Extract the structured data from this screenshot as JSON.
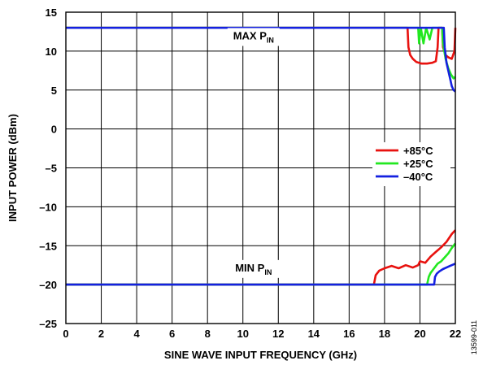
{
  "figure_id": "13599-011",
  "chart_data": {
    "type": "line",
    "title": "",
    "xlabel": "SINE WAVE INPUT FREQUENCY (GHz)",
    "ylabel": "INPUT POWER (dBm)",
    "xlim": [
      0,
      22
    ],
    "ylim": [
      -25,
      15
    ],
    "xticks": [
      0,
      2,
      4,
      6,
      8,
      10,
      12,
      14,
      16,
      18,
      20,
      22
    ],
    "xtick_labels": [
      "0",
      "2",
      "4",
      "6",
      "8",
      "10",
      "12",
      "14",
      "16",
      "18",
      "20",
      "22"
    ],
    "yticks": [
      15,
      10,
      5,
      0,
      -5,
      -10,
      -15,
      -20,
      -25
    ],
    "ytick_labels": [
      "15",
      "10",
      "5",
      "0",
      "–5",
      "–10",
      "–15",
      "–20",
      "–25"
    ],
    "grid": true,
    "legend_position": "right",
    "annotations": [
      {
        "text": "MAX P",
        "subscript": "IN",
        "x": 10.6,
        "y": 11.5
      },
      {
        "text": "MIN P",
        "subscript": "IN",
        "x": 10.6,
        "y": -18.3
      }
    ],
    "series": [
      {
        "name": "+85°C",
        "color": "#e8120f",
        "values": [
          [
            0,
            13
          ],
          [
            19.3,
            13
          ],
          [
            19.35,
            10.5
          ],
          [
            19.45,
            9.5
          ],
          [
            19.6,
            9.0
          ],
          [
            19.8,
            8.6
          ],
          [
            20.1,
            8.4
          ],
          [
            20.4,
            8.4
          ],
          [
            20.7,
            8.5
          ],
          [
            20.9,
            8.7
          ],
          [
            21.0,
            10.5
          ],
          [
            21.05,
            13
          ],
          [
            21.25,
            13
          ],
          [
            21.3,
            10.5
          ],
          [
            21.45,
            9.5
          ],
          [
            21.6,
            9.2
          ],
          [
            21.8,
            9.0
          ],
          [
            21.95,
            10.0
          ],
          [
            22,
            13
          ]
        ]
      },
      {
        "name": "+25°C",
        "color": "#22e820",
        "values": [
          [
            0,
            13
          ],
          [
            19.9,
            13
          ],
          [
            19.95,
            11.0
          ],
          [
            20.05,
            13
          ],
          [
            20.2,
            11.0
          ],
          [
            20.35,
            13
          ],
          [
            20.55,
            11.5
          ],
          [
            20.7,
            13
          ],
          [
            21.25,
            13
          ],
          [
            21.3,
            11.0
          ],
          [
            21.45,
            9.0
          ],
          [
            21.6,
            7.8
          ],
          [
            21.75,
            7.0
          ],
          [
            21.9,
            6.5
          ],
          [
            22,
            6.7
          ]
        ]
      },
      {
        "name": "–40°C",
        "color": "#1420e0",
        "values": [
          [
            0,
            13
          ],
          [
            21.35,
            13
          ],
          [
            21.4,
            10.5
          ],
          [
            21.5,
            8.5
          ],
          [
            21.6,
            7.5
          ],
          [
            21.7,
            6.5
          ],
          [
            21.8,
            5.5
          ],
          [
            21.9,
            5.0
          ],
          [
            22,
            4.8
          ]
        ]
      },
      {
        "name": "+85°C",
        "color": "#e8120f",
        "values": [
          [
            0,
            -20
          ],
          [
            17.4,
            -20
          ],
          [
            17.5,
            -18.8
          ],
          [
            17.7,
            -18.2
          ],
          [
            18.0,
            -17.9
          ],
          [
            18.4,
            -17.6
          ],
          [
            18.8,
            -17.9
          ],
          [
            19.2,
            -17.5
          ],
          [
            19.6,
            -17.8
          ],
          [
            19.9,
            -17.5
          ],
          [
            20.0,
            -17.0
          ],
          [
            20.3,
            -17.2
          ],
          [
            20.6,
            -16.4
          ],
          [
            20.9,
            -15.8
          ],
          [
            21.2,
            -15.2
          ],
          [
            21.5,
            -14.5
          ],
          [
            21.8,
            -13.5
          ],
          [
            22,
            -13.0
          ]
        ]
      },
      {
        "name": "+25°C",
        "color": "#22e820",
        "values": [
          [
            0,
            -20
          ],
          [
            20.4,
            -20
          ],
          [
            20.5,
            -19.0
          ],
          [
            20.6,
            -18.5
          ],
          [
            20.8,
            -17.9
          ],
          [
            21.0,
            -17.3
          ],
          [
            21.2,
            -17.0
          ],
          [
            21.4,
            -16.5
          ],
          [
            21.6,
            -16.0
          ],
          [
            21.8,
            -15.3
          ],
          [
            22,
            -14.7
          ]
        ]
      },
      {
        "name": "–40°C",
        "color": "#1420e0",
        "values": [
          [
            0,
            -20
          ],
          [
            20.8,
            -20
          ],
          [
            20.85,
            -19.0
          ],
          [
            20.95,
            -18.6
          ],
          [
            21.1,
            -18.3
          ],
          [
            21.3,
            -18.0
          ],
          [
            21.5,
            -17.8
          ],
          [
            21.7,
            -17.6
          ],
          [
            22,
            -17.3
          ]
        ]
      }
    ],
    "legend": [
      {
        "label": "+85°C",
        "color": "#e8120f"
      },
      {
        "label": "+25°C",
        "color": "#22e820"
      },
      {
        "label": "–40°C",
        "color": "#1420e0"
      }
    ]
  }
}
